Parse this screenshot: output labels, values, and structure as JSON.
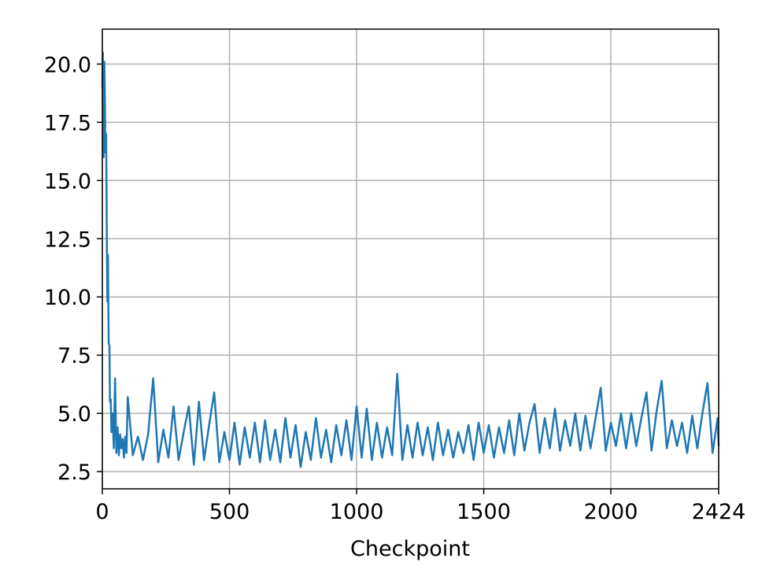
{
  "chart_data": {
    "type": "line",
    "x_label": "Checkpoint",
    "color": "#1f77b4",
    "grid": true,
    "xlim": [
      0,
      2424
    ],
    "xticks": [
      0,
      500,
      1000,
      1500,
      2000,
      2424
    ],
    "ylim": [
      1.76,
      21.5
    ],
    "yticks": [
      2.5,
      {
        "value": 5,
        "label": "5.0"
      },
      7.5,
      {
        "value": 10,
        "label": "10.0"
      },
      12.5,
      {
        "value": 15,
        "label": "15.0"
      },
      17.5,
      {
        "value": 20,
        "label": "20.0"
      }
    ],
    "x": [
      0,
      2,
      5,
      8,
      10,
      12,
      15,
      18,
      20,
      22,
      25,
      28,
      30,
      33,
      36,
      40,
      45,
      50,
      55,
      60,
      65,
      70,
      75,
      80,
      85,
      90,
      95,
      100,
      120,
      140,
      160,
      180,
      200,
      220,
      240,
      260,
      280,
      300,
      320,
      340,
      360,
      380,
      400,
      420,
      440,
      460,
      480,
      500,
      520,
      540,
      560,
      580,
      600,
      620,
      640,
      660,
      680,
      700,
      720,
      740,
      760,
      780,
      800,
      820,
      840,
      860,
      880,
      900,
      920,
      940,
      960,
      980,
      1000,
      1020,
      1040,
      1060,
      1080,
      1100,
      1120,
      1140,
      1160,
      1180,
      1200,
      1220,
      1240,
      1260,
      1280,
      1300,
      1320,
      1340,
      1360,
      1380,
      1400,
      1420,
      1440,
      1460,
      1480,
      1500,
      1520,
      1540,
      1560,
      1580,
      1600,
      1620,
      1640,
      1660,
      1680,
      1700,
      1720,
      1740,
      1760,
      1780,
      1800,
      1820,
      1840,
      1860,
      1880,
      1900,
      1920,
      1940,
      1960,
      1980,
      2000,
      2020,
      2040,
      2060,
      2080,
      2100,
      2120,
      2140,
      2160,
      2180,
      2200,
      2220,
      2240,
      2260,
      2280,
      2300,
      2320,
      2340,
      2360,
      2380,
      2400,
      2420,
      2424
    ],
    "values": [
      19.0,
      20.5,
      16.0,
      20.1,
      18.5,
      16.2,
      17.0,
      12.0,
      9.8,
      11.8,
      8.0,
      7.9,
      5.5,
      5.6,
      4.2,
      5.0,
      3.5,
      6.5,
      3.3,
      4.4,
      3.2,
      4.1,
      3.5,
      3.9,
      3.1,
      4.0,
      3.3,
      5.7,
      3.2,
      4.0,
      3.0,
      4.1,
      6.5,
      2.9,
      4.3,
      3.1,
      5.3,
      3.0,
      4.2,
      5.3,
      2.8,
      5.5,
      3.0,
      4.5,
      5.9,
      2.9,
      4.2,
      3.0,
      4.6,
      2.8,
      4.4,
      3.1,
      4.6,
      2.9,
      4.7,
      3.0,
      4.3,
      2.9,
      4.8,
      3.1,
      4.5,
      2.7,
      4.2,
      3.0,
      4.8,
      3.1,
      4.3,
      2.9,
      4.5,
      3.2,
      4.7,
      3.0,
      5.3,
      3.1,
      5.2,
      3.0,
      4.6,
      3.1,
      4.4,
      3.2,
      6.7,
      3.0,
      4.5,
      3.1,
      4.6,
      3.2,
      4.4,
      3.0,
      4.6,
      3.2,
      4.3,
      3.1,
      4.2,
      3.3,
      4.5,
      3.0,
      4.6,
      3.3,
      4.5,
      3.1,
      4.4,
      3.3,
      4.7,
      3.2,
      5.0,
      3.4,
      4.6,
      5.4,
      3.3,
      4.8,
      3.5,
      5.2,
      3.4,
      4.7,
      3.6,
      5.0,
      3.4,
      4.9,
      3.5,
      4.8,
      6.1,
      3.4,
      4.6,
      3.6,
      5.0,
      3.5,
      5.0,
      3.6,
      4.8,
      5.9,
      3.4,
      5.1,
      6.4,
      3.5,
      4.7,
      3.6,
      4.6,
      3.3,
      4.9,
      3.5,
      5.0,
      6.3,
      3.3,
      4.8,
      3.6
    ]
  }
}
